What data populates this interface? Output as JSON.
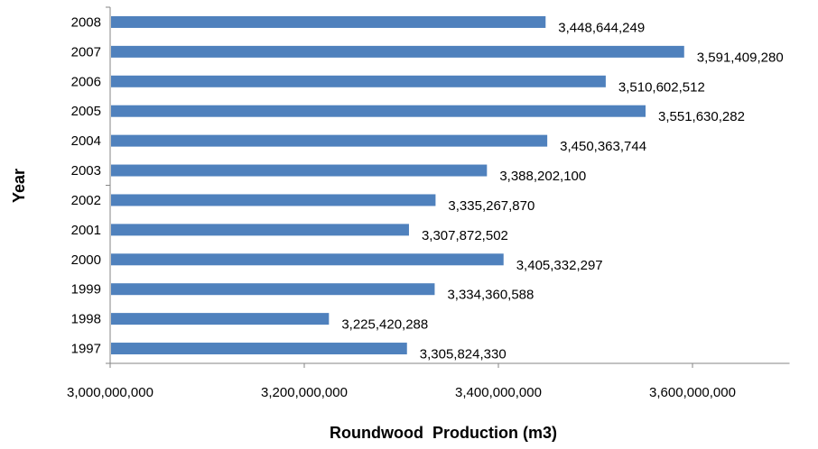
{
  "chart_data": {
    "type": "bar",
    "orientation": "horizontal",
    "title": "",
    "xlabel": "Roundwood  Production (m3)",
    "ylabel": "Year",
    "categories": [
      "1997",
      "1998",
      "1999",
      "2000",
      "2001",
      "2002",
      "2003",
      "2004",
      "2005",
      "2006",
      "2007",
      "2008"
    ],
    "values": [
      3305824330,
      3225420288,
      3334360588,
      3405332297,
      3307872502,
      3335267870,
      3388202100,
      3450363744,
      3551630282,
      3510602512,
      3591409280,
      3448644249
    ],
    "value_labels": [
      "3,305,824,330",
      "3,225,420,288",
      "3,334,360,588",
      "3,405,332,297",
      "3,307,872,502",
      "3,335,267,870",
      "3,388,202,100",
      "3,450,363,744",
      "3,551,630,282",
      "3,510,602,512",
      "3,591,409,280",
      "3,448,644,249"
    ],
    "xlim": [
      3000000000,
      3700000000
    ],
    "x_ticks": [
      3000000000,
      3200000000,
      3400000000,
      3600000000
    ],
    "x_tick_labels": [
      "3,000,000,000",
      "3,200,000,000",
      "3,400,000,000",
      "3,600,000,000"
    ],
    "bar_color": "#4F81BD",
    "grid": false,
    "legend": "none"
  }
}
